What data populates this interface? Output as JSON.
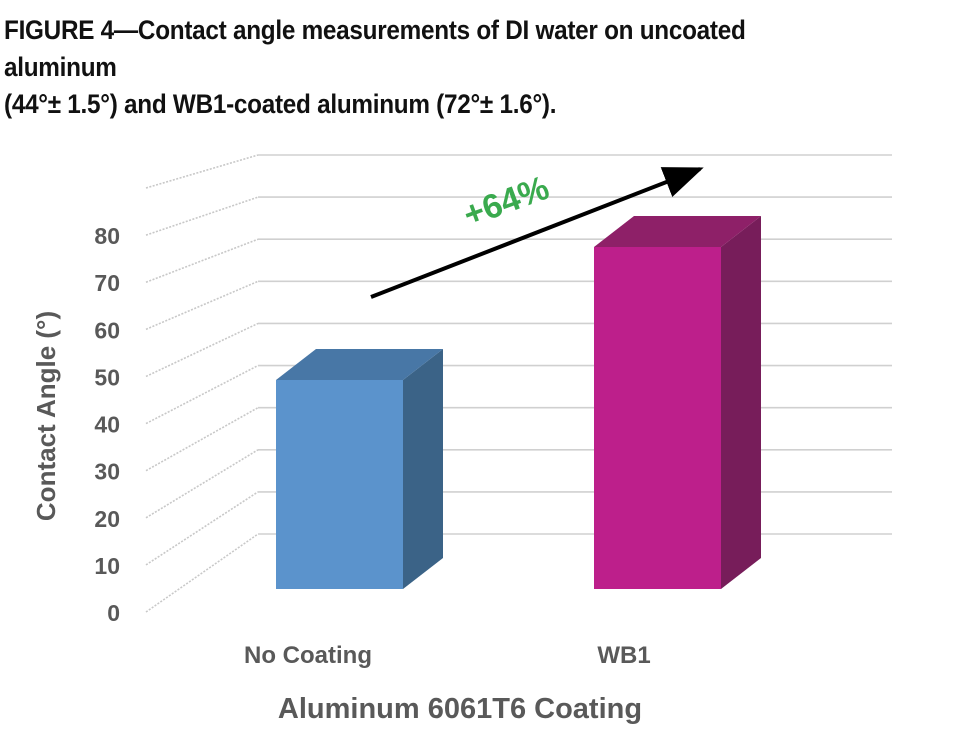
{
  "figure_caption": {
    "line1": "FIGURE 4—Contact angle measurements of DI water on uncoated aluminum",
    "line2": "(44°± 1.5°) and WB1-coated aluminum (72°± 1.6°)."
  },
  "chart_data": {
    "type": "bar",
    "title": "",
    "categories": [
      "No Coating",
      "WB1"
    ],
    "values": [
      44,
      72
    ],
    "xlabel": "Aluminum 6061T6 Coating",
    "ylabel": "Contact Angle (°)",
    "ylim": [
      0,
      80
    ],
    "yticks": [
      0,
      10,
      20,
      30,
      40,
      50,
      60,
      70,
      80
    ],
    "grid": true,
    "style": "3d-column",
    "colors": {
      "No Coating": {
        "front": "#5b93cc",
        "side": "#3b6387",
        "top": "#4877a6"
      },
      "WB1": {
        "front": "#bd1f8b",
        "side": "#771d5a",
        "top": "#8e2068"
      }
    },
    "annotation": {
      "text": "+64%",
      "color": "#3aaa4e",
      "arrow": "trend-up"
    }
  }
}
